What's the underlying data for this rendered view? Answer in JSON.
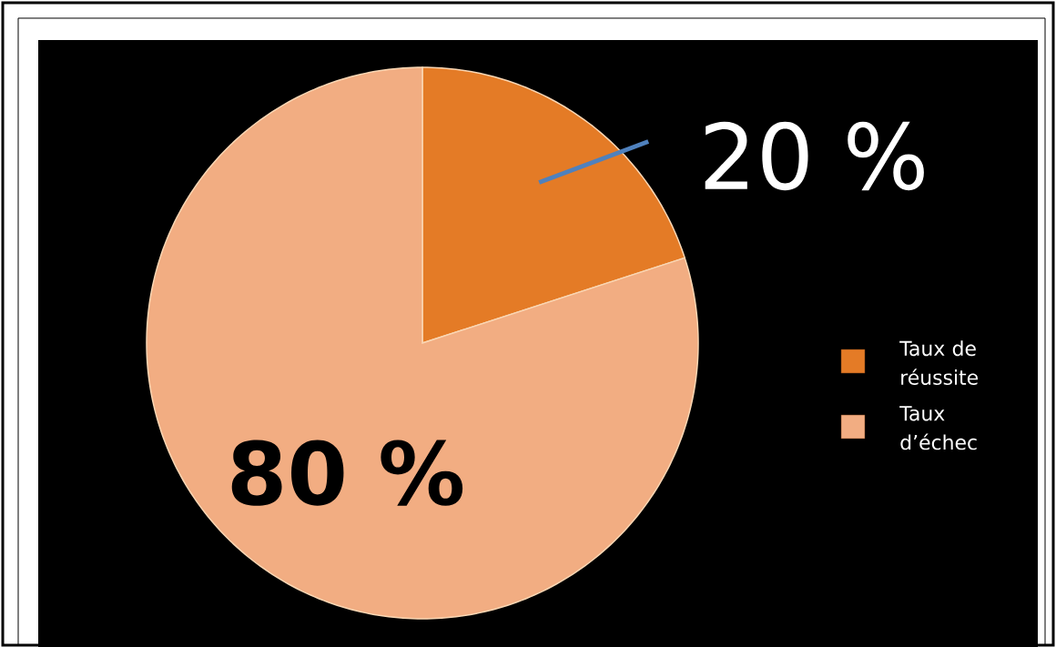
{
  "chart_data": {
    "type": "pie",
    "categories": [
      "Taux de réussite",
      "Taux d’échec"
    ],
    "values": [
      20,
      80
    ],
    "colors": [
      "#e47b26",
      "#f2ad82"
    ],
    "value_labels": [
      "20 %",
      "80 %"
    ],
    "legend": "right"
  }
}
